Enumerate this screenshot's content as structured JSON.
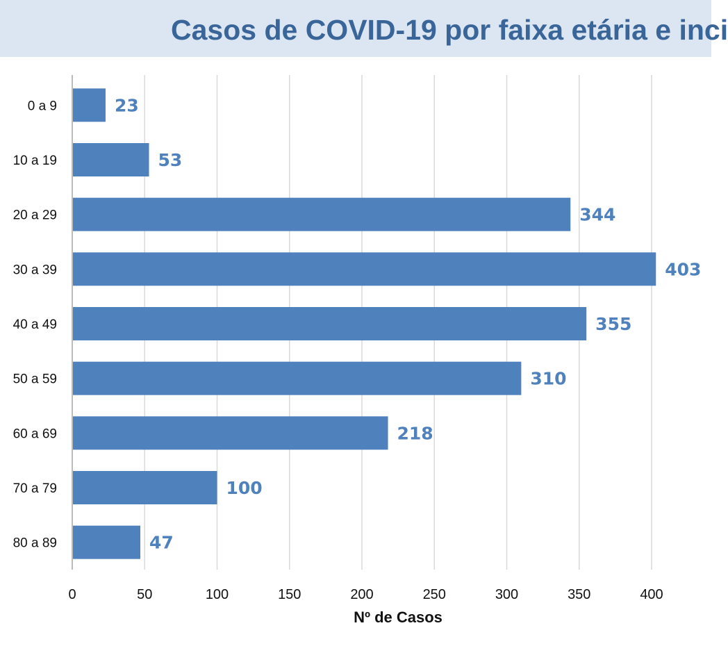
{
  "chart_data": {
    "type": "bar",
    "orientation": "horizontal",
    "title": "Casos de COVID-19 por faixa etária e inci",
    "xlabel": "Nº de Casos",
    "ylabel": "",
    "categories": [
      "0 a 9",
      "10 a 19",
      "20 a 29",
      "30 a 39",
      "40 a 49",
      "50 a 59",
      "60  a 69",
      "70 a 79",
      "80 a 89"
    ],
    "values": [
      23,
      53,
      344,
      403,
      355,
      310,
      218,
      100,
      47
    ],
    "xlim": [
      0,
      400
    ],
    "xticks": [
      0,
      50,
      100,
      150,
      200,
      250,
      300,
      350,
      400
    ],
    "grid": "vertical",
    "legend": "none",
    "colors": {
      "bar": "#4f81bd",
      "data_label": "#4f81bd",
      "title": "#3a6598",
      "title_band": "#dce6f2",
      "gridline": "#d9d9d9"
    }
  }
}
